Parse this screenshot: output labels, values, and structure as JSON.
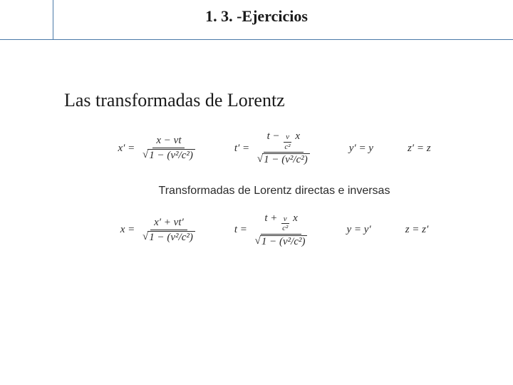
{
  "header": {
    "title": "1. 3. -Ejercicios",
    "title_fontsize": 22,
    "title_color": "#1a1a1a",
    "rule_color": "#4a7aa8"
  },
  "subtitle": {
    "text": "Las transformadas de Lorentz",
    "fontsize": 26,
    "color": "#1a1a1a"
  },
  "caption": {
    "text": "Transformadas de Lorentz directas e inversas",
    "fontsize": 16,
    "color": "#2b2b2b"
  },
  "equations": {
    "fontsize": 15,
    "color": "#2b2b2b",
    "direct": {
      "x": {
        "lhs": "x′",
        "num": "x − vt",
        "den_radicand": "1 − (v²/c²)"
      },
      "t": {
        "lhs": "t′",
        "num_left": "t −",
        "num_frac_top": "v",
        "num_frac_bot": "c²",
        "num_right": "x",
        "den_radicand": "1 − (v²/c²)"
      },
      "y": "y′ = y",
      "z": "z′ = z"
    },
    "inverse": {
      "x": {
        "lhs": "x",
        "num": "x′ + vt′",
        "den_radicand": "1 − (v²/c²)"
      },
      "t": {
        "lhs": "t",
        "num_left": "t +",
        "num_frac_top": "v",
        "num_frac_bot": "c²",
        "num_right": "x",
        "den_radicand": "1 − (v²/c²)"
      },
      "y": "y = y′",
      "z": "z = z′"
    }
  },
  "colors": {
    "background": "#ffffff"
  }
}
